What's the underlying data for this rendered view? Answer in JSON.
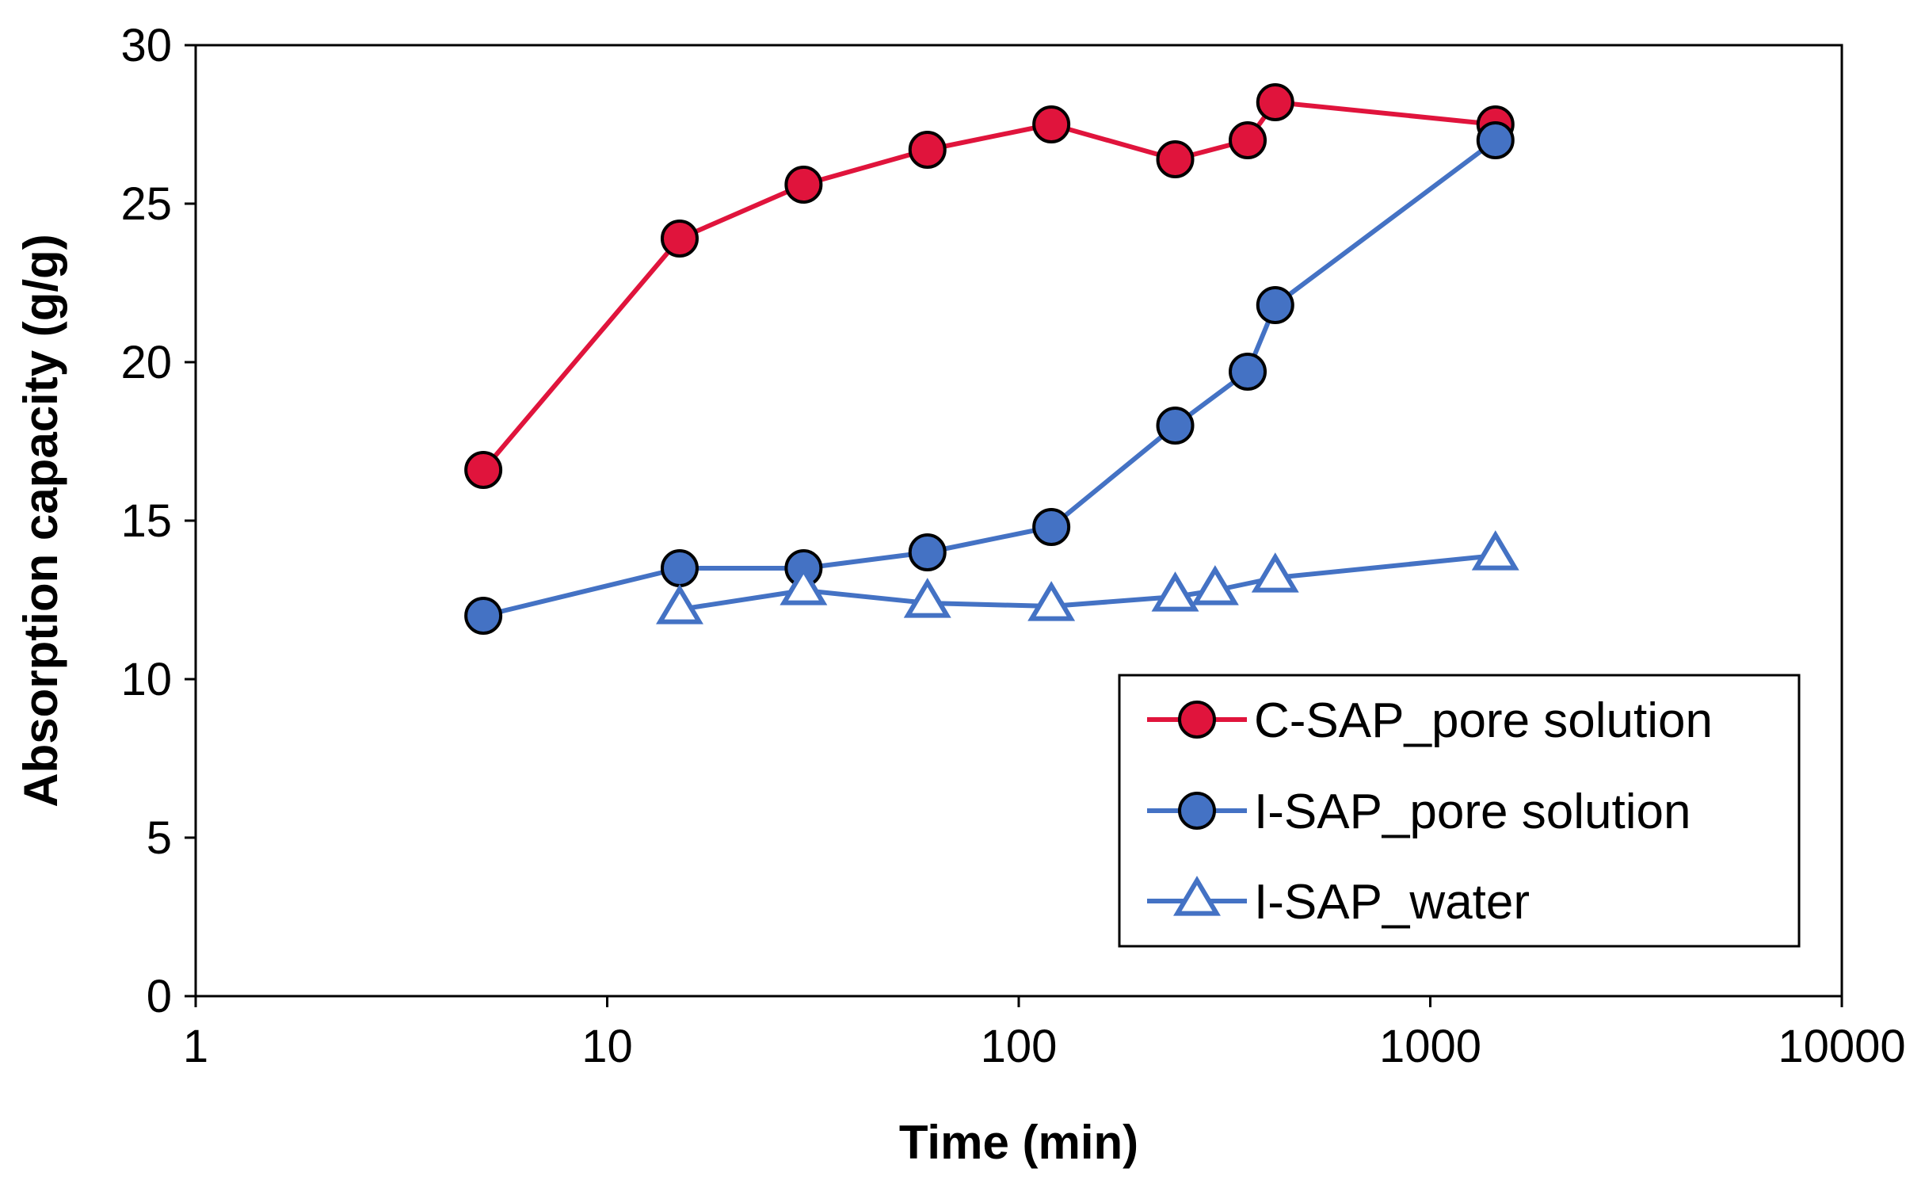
{
  "chart_data": {
    "type": "line",
    "title": "",
    "xlabel": "Time (min)",
    "ylabel": "Absorption capacity (g/g)",
    "xscale": "log",
    "xlim": [
      1,
      10000
    ],
    "ylim": [
      0,
      30
    ],
    "xticks": [
      1,
      10,
      100,
      1000,
      10000
    ],
    "xtick_labels": [
      "1",
      "10",
      "100",
      "1000",
      "10000"
    ],
    "yticks": [
      0,
      5,
      10,
      15,
      20,
      25,
      30
    ],
    "ytick_labels": [
      "0",
      "5",
      "10",
      "15",
      "20",
      "25",
      "30"
    ],
    "grid": false,
    "legend_position": "bottom-right",
    "series": [
      {
        "name": "C-SAP_pore solution",
        "color": "#e0143c",
        "marker": "circle",
        "marker_fill": "#e0143c",
        "x": [
          5,
          15,
          30,
          60,
          120,
          240,
          360,
          420,
          1440
        ],
        "y": [
          16.6,
          23.9,
          25.6,
          26.7,
          27.5,
          26.4,
          27.0,
          28.2,
          27.5
        ]
      },
      {
        "name": "I-SAP_pore solution",
        "color": "#4472c4",
        "marker": "circle",
        "marker_fill": "#4472c4",
        "x": [
          5,
          15,
          30,
          60,
          120,
          240,
          360,
          420,
          1440
        ],
        "y": [
          12.0,
          13.5,
          13.5,
          14.0,
          14.8,
          18.0,
          19.7,
          21.8,
          27.0
        ]
      },
      {
        "name": "I-SAP_water",
        "color": "#4472c4",
        "marker": "triangle",
        "marker_fill": "#ffffff",
        "x": [
          15,
          30,
          60,
          120,
          240,
          300,
          420,
          1440
        ],
        "y": [
          12.2,
          12.8,
          12.4,
          12.3,
          12.6,
          12.8,
          13.2,
          13.9
        ]
      }
    ]
  }
}
